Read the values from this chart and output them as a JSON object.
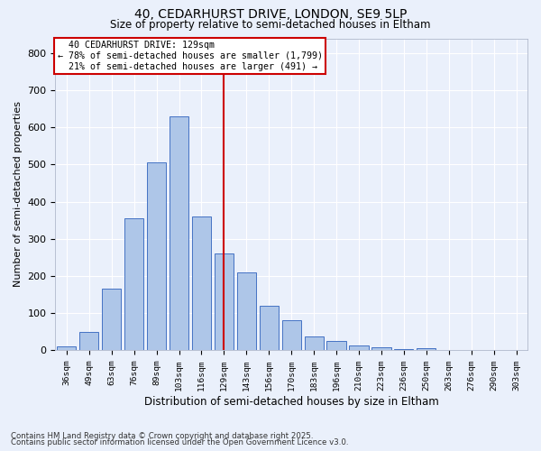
{
  "title1": "40, CEDARHURST DRIVE, LONDON, SE9 5LP",
  "title2": "Size of property relative to semi-detached houses in Eltham",
  "xlabel": "Distribution of semi-detached houses by size in Eltham",
  "ylabel": "Number of semi-detached properties",
  "footnote1": "Contains HM Land Registry data © Crown copyright and database right 2025.",
  "footnote2": "Contains public sector information licensed under the Open Government Licence v3.0.",
  "bin_labels": [
    "36sqm",
    "49sqm",
    "63sqm",
    "76sqm",
    "89sqm",
    "103sqm",
    "116sqm",
    "129sqm",
    "143sqm",
    "156sqm",
    "170sqm",
    "183sqm",
    "196sqm",
    "210sqm",
    "223sqm",
    "236sqm",
    "250sqm",
    "263sqm",
    "276sqm",
    "290sqm",
    "303sqm"
  ],
  "bar_values": [
    10,
    50,
    165,
    355,
    505,
    630,
    360,
    260,
    210,
    120,
    80,
    38,
    25,
    14,
    8,
    4,
    5,
    1,
    0,
    1,
    0
  ],
  "bar_color": "#aec6e8",
  "bar_edge_color": "#4472c4",
  "property_label": "40 CEDARHURST DRIVE: 129sqm",
  "pct_smaller": 78,
  "n_smaller": 1799,
  "pct_larger": 21,
  "n_larger": 491,
  "vline_color": "#cc0000",
  "annotation_box_color": "#cc0000",
  "bg_color": "#eaf0fb",
  "grid_color": "#ffffff",
  "ylim": [
    0,
    840
  ],
  "yticks": [
    0,
    100,
    200,
    300,
    400,
    500,
    600,
    700,
    800
  ],
  "property_bin_index": 7
}
